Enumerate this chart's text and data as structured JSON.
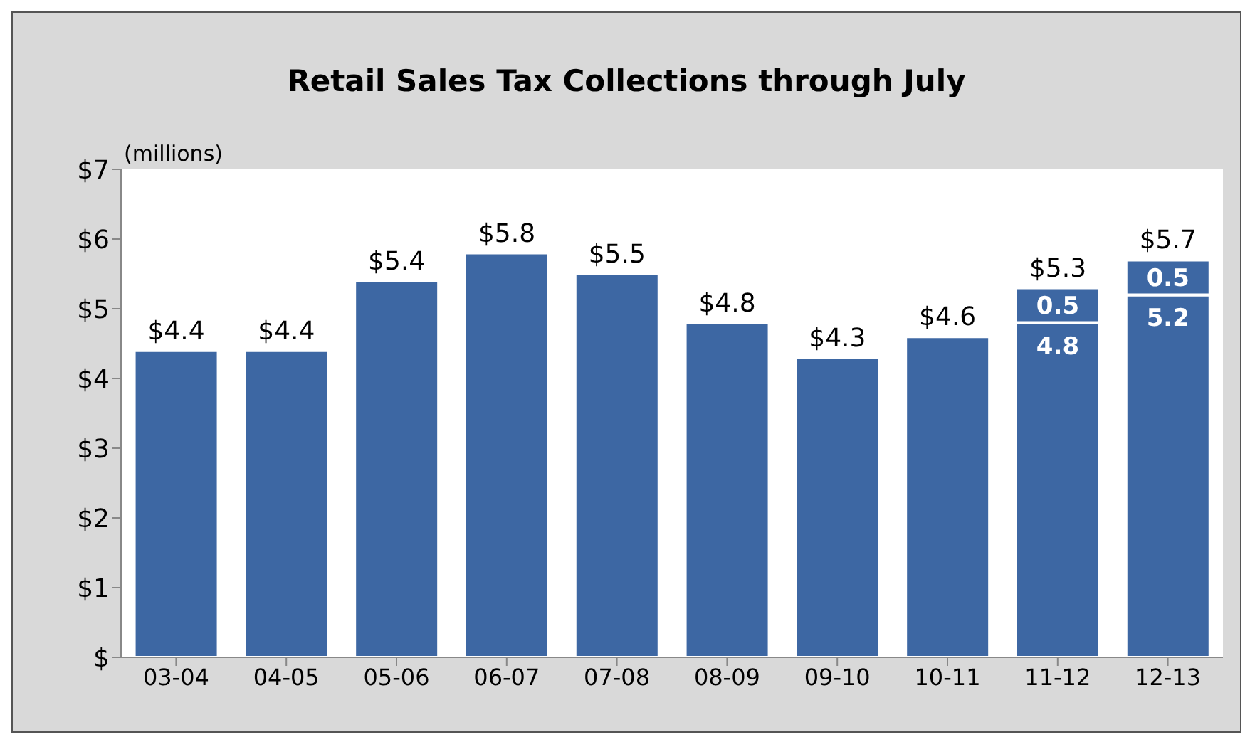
{
  "chart_data": {
    "type": "bar",
    "title": "Retail Sales Tax Collections through July",
    "ylabel": "(millions)",
    "categories": [
      "03-04",
      "04-05",
      "05-06",
      "06-07",
      "07-08",
      "08-09",
      "09-10",
      "10-11",
      "11-12",
      "12-13"
    ],
    "series": [
      {
        "color": "#3d67a3",
        "values": [
          4.4,
          4.4,
          5.4,
          5.8,
          5.5,
          4.8,
          4.3,
          4.6,
          4.8,
          5.2
        ],
        "value_labels": [
          null,
          null,
          null,
          null,
          null,
          null,
          null,
          null,
          "4.8",
          "5.2"
        ]
      },
      {
        "color": "#3d67a3",
        "values": [
          null,
          null,
          null,
          null,
          null,
          null,
          null,
          null,
          0.5,
          0.5
        ],
        "value_labels": [
          null,
          null,
          null,
          null,
          null,
          null,
          null,
          null,
          "0.5",
          "0.5"
        ]
      }
    ],
    "stacked": true,
    "totals": [
      "$4.4",
      "$4.4",
      "$5.4",
      "$5.8",
      "$5.5",
      "$4.8",
      "$4.3",
      "$4.6",
      "$5.3",
      "$5.7"
    ],
    "ylim": [
      0,
      7
    ],
    "yticks": [
      {
        "value": 0,
        "label": "$"
      },
      {
        "value": 1,
        "label": "$1"
      },
      {
        "value": 2,
        "label": "$2"
      },
      {
        "value": 3,
        "label": "$3"
      },
      {
        "value": 4,
        "label": "$4"
      },
      {
        "value": 5,
        "label": "$5"
      },
      {
        "value": 6,
        "label": "$6"
      },
      {
        "value": 7,
        "label": "$7"
      }
    ],
    "grid": false,
    "legend": false
  }
}
